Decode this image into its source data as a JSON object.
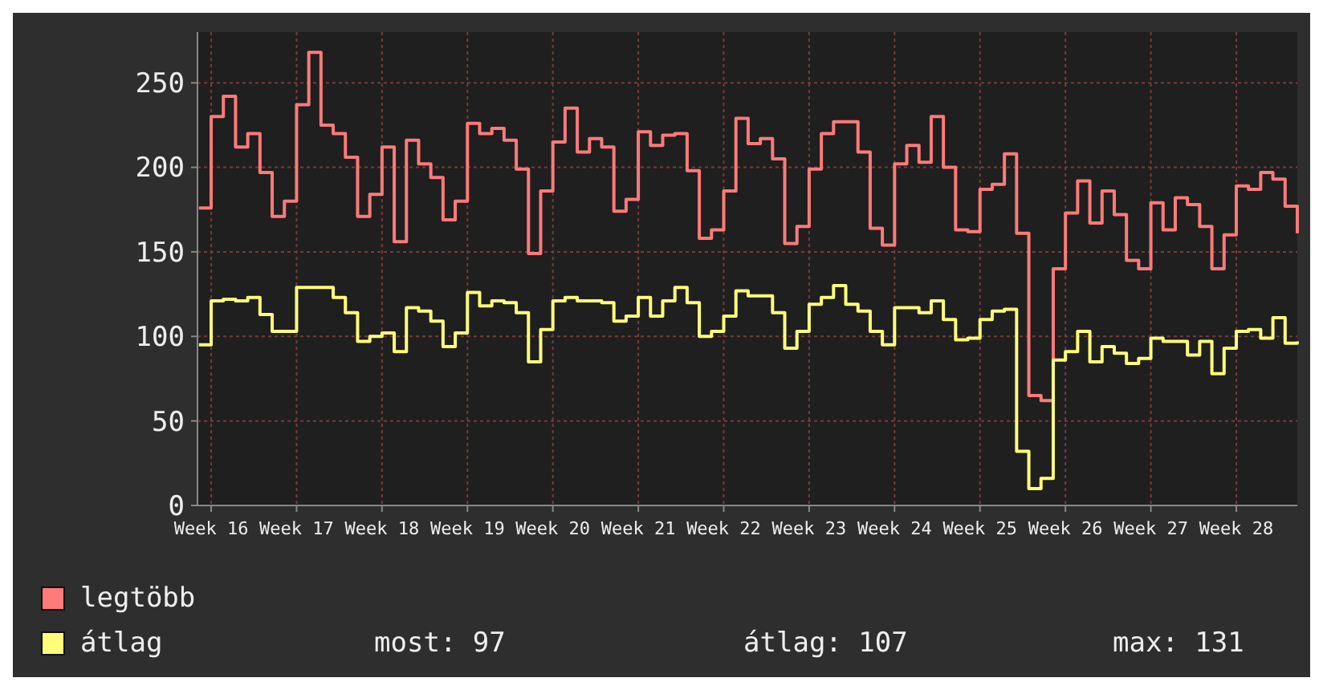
{
  "chart_data": {
    "type": "step",
    "categories": [
      null,
      "Week 16",
      null,
      null,
      null,
      null,
      null,
      null,
      "Week 17",
      null,
      null,
      null,
      null,
      null,
      null,
      "Week 18",
      null,
      null,
      null,
      null,
      null,
      null,
      "Week 19",
      null,
      null,
      null,
      null,
      null,
      null,
      "Week 20",
      null,
      null,
      null,
      null,
      null,
      null,
      "Week 21",
      null,
      null,
      null,
      null,
      null,
      null,
      "Week 22",
      null,
      null,
      null,
      null,
      null,
      null,
      "Week 23",
      null,
      null,
      null,
      null,
      null,
      null,
      "Week 24",
      null,
      null,
      null,
      null,
      null,
      null,
      "Week 25",
      null,
      null,
      null,
      null,
      null,
      null,
      "Week 26",
      null,
      null,
      null,
      null,
      null,
      null,
      "Week 27",
      null,
      null,
      null,
      null,
      null,
      null,
      "Week 28",
      null,
      null,
      null,
      null,
      null
    ],
    "series": [
      {
        "name": "legtöbb",
        "color": "#ff7a7a",
        "values": [
          176,
          230,
          242,
          212,
          220,
          197,
          171,
          180,
          237,
          268,
          225,
          220,
          206,
          171,
          184,
          212,
          156,
          216,
          202,
          194,
          169,
          180,
          226,
          220,
          223,
          216,
          199,
          149,
          186,
          215,
          235,
          209,
          217,
          212,
          174,
          181,
          221,
          213,
          219,
          220,
          198,
          158,
          163,
          186,
          229,
          214,
          217,
          205,
          155,
          165,
          199,
          220,
          227,
          227,
          209,
          164,
          154,
          202,
          213,
          203,
          230,
          200,
          163,
          162,
          187,
          190,
          208,
          161,
          65,
          62,
          140,
          173,
          192,
          167,
          186,
          172,
          145,
          140,
          179,
          163,
          182,
          178,
          165,
          140,
          160,
          189,
          187,
          197,
          193,
          177,
          161
        ]
      },
      {
        "name": "átlag",
        "color": "#ffff7a",
        "values": [
          95,
          121,
          122,
          121,
          123,
          113,
          103,
          103,
          129,
          129,
          129,
          123,
          114,
          97,
          100,
          102,
          91,
          117,
          115,
          109,
          94,
          102,
          126,
          118,
          121,
          120,
          114,
          85,
          104,
          121,
          123,
          121,
          121,
          120,
          109,
          112,
          123,
          112,
          121,
          129,
          120,
          100,
          103,
          112,
          127,
          124,
          124,
          114,
          93,
          103,
          119,
          123,
          130,
          119,
          115,
          103,
          95,
          117,
          117,
          114,
          121,
          110,
          98,
          99,
          110,
          115,
          116,
          32,
          10,
          16,
          86,
          91,
          103,
          85,
          94,
          90,
          84,
          87,
          99,
          97,
          97,
          89,
          97,
          78,
          93,
          103,
          104,
          99,
          111,
          96,
          97
        ]
      }
    ],
    "ylim": [
      0,
      280
    ],
    "yticks": [
      0,
      50,
      100,
      150,
      200,
      250
    ],
    "grid": true,
    "legend": "bottom",
    "annotations": [
      "most: 97",
      "átlag: 107",
      "max: 131"
    ]
  }
}
